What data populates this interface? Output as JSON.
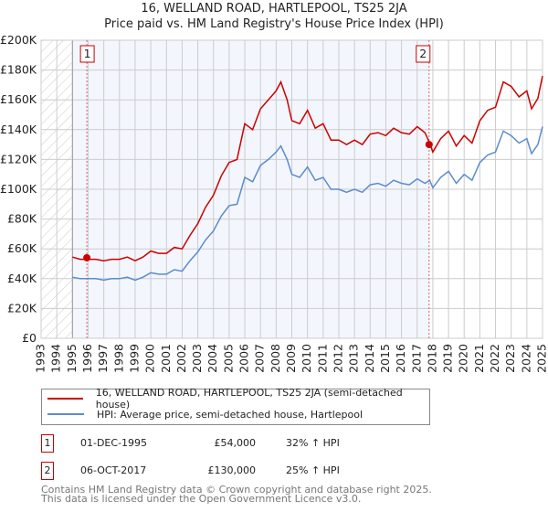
{
  "title": "16, WELLAND ROAD, HARTLEPOOL, TS25 2JA",
  "subtitle": "Price paid vs. HM Land Registry's House Price Index (HPI)",
  "chart_data": {
    "type": "line",
    "title": "16, WELLAND ROAD, HARTLEPOOL, TS25 2JA",
    "subtitle": "Price paid vs. HM Land Registry's House Price Index (HPI)",
    "xlim": [
      1993,
      2025
    ],
    "ylim": [
      0,
      200000
    ],
    "x_ticks": [
      "1993",
      "1994",
      "1995",
      "1996",
      "1997",
      "1998",
      "1999",
      "2000",
      "2001",
      "2002",
      "2003",
      "2004",
      "2005",
      "2006",
      "2007",
      "2008",
      "2009",
      "2010",
      "2011",
      "2012",
      "2013",
      "2014",
      "2015",
      "2016",
      "2017",
      "2018",
      "2019",
      "2020",
      "2021",
      "2022",
      "2023",
      "2024",
      "2025"
    ],
    "y_ticks": [
      "£0",
      "£20K",
      "£40K",
      "£60K",
      "£80K",
      "£100K",
      "£120K",
      "£140K",
      "£160K",
      "£180K",
      "£200K"
    ],
    "grid": true,
    "x": [
      1995,
      1995.5,
      1996,
      1996.5,
      1997,
      1997.5,
      1998,
      1998.5,
      1999,
      1999.5,
      2000,
      2000.5,
      2001,
      2001.5,
      2002,
      2002.5,
      2003,
      2003.5,
      2004,
      2004.5,
      2005,
      2005.5,
      2006,
      2006.5,
      2007,
      2007.5,
      2008,
      2008.3,
      2008.7,
      2009,
      2009.5,
      2010,
      2010.5,
      2011,
      2011.5,
      2012,
      2012.5,
      2013,
      2013.5,
      2014,
      2014.5,
      2015,
      2015.5,
      2016,
      2016.5,
      2017,
      2017.5,
      2017.8,
      2018,
      2018.5,
      2019,
      2019.5,
      2020,
      2020.5,
      2021,
      2021.5,
      2022,
      2022.5,
      2023,
      2023.5,
      2024,
      2024.3,
      2024.7,
      2025
    ],
    "series": [
      {
        "name": "16, WELLAND ROAD, HARTLEPOOL, TS25 2JA (semi-detached house)",
        "color": "#cc0000",
        "values": [
          54500,
          53000,
          53000,
          53000,
          52000,
          53000,
          53000,
          54500,
          52000,
          54500,
          58500,
          57000,
          57000,
          61000,
          60000,
          69000,
          77000,
          88000,
          96000,
          109000,
          118000,
          120000,
          144000,
          140000,
          154000,
          160000,
          166000,
          172000,
          160000,
          146000,
          144000,
          153000,
          141000,
          144000,
          133000,
          133000,
          130000,
          133000,
          130000,
          137000,
          138000,
          136000,
          141000,
          138000,
          137000,
          142000,
          138000,
          131000,
          125000,
          134000,
          139000,
          129000,
          136000,
          131000,
          146000,
          153000,
          155000,
          172000,
          169000,
          162000,
          166000,
          154000,
          161000,
          176000
        ]
      },
      {
        "name": "HPI: Average price, semi-detached house, Hartlepool",
        "color": "#5b8bd0",
        "values": [
          41000,
          40000,
          40000,
          40000,
          39000,
          40000,
          40000,
          41000,
          39000,
          41000,
          44000,
          43000,
          43000,
          46000,
          45000,
          52000,
          58000,
          66000,
          72000,
          82000,
          89000,
          90000,
          108000,
          105000,
          116000,
          120000,
          125000,
          129000,
          120000,
          110000,
          108000,
          115000,
          106000,
          108000,
          100000,
          100000,
          98000,
          100000,
          98000,
          103000,
          104000,
          102000,
          106000,
          104000,
          103000,
          107000,
          104000,
          106000,
          101000,
          108000,
          112000,
          104000,
          110000,
          106000,
          118000,
          123000,
          125000,
          139000,
          136000,
          131000,
          134000,
          124000,
          130000,
          142000
        ]
      }
    ],
    "sales": [
      {
        "label": "1",
        "x": 1995.92,
        "value": 54000
      },
      {
        "label": "2",
        "x": 2017.76,
        "value": 130000
      }
    ]
  },
  "table": [
    {
      "num": "1",
      "date": "01-DEC-1995",
      "price": "£54,000",
      "hpi": "32% ↑ HPI"
    },
    {
      "num": "2",
      "date": "06-OCT-2017",
      "price": "£130,000",
      "hpi": "25% ↑ HPI"
    }
  ],
  "footer": {
    "line1": "Contains HM Land Registry data © Crown copyright and database right 2025.",
    "line2": "This data is licensed under the Open Government Licence v3.0."
  }
}
